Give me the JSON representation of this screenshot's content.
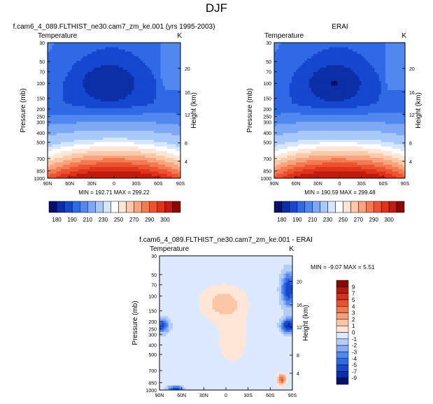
{
  "page": {
    "title": "DJF"
  },
  "colors": {
    "palette_abs": [
      "#08106b",
      "#0a2fa6",
      "#1547cf",
      "#2f69e6",
      "#5088f0",
      "#7ca8f5",
      "#a9c9fb",
      "#d6e7fd",
      "#ffffff",
      "#fde6d6",
      "#fcc9a8",
      "#f9a47c",
      "#f47a52",
      "#ec5330",
      "#e0331a",
      "#c01b0f",
      "#8a0a05"
    ],
    "palette_diff": [
      "#08106b",
      "#0a2fa6",
      "#1547cf",
      "#2f69e6",
      "#5088f0",
      "#86adf4",
      "#b2cdfb",
      "#dbe8fd",
      "#fde6d6",
      "#fbc6a6",
      "#f7a07a",
      "#f27a52",
      "#e9502f",
      "#d7301b",
      "#b21a0e",
      "#860906"
    ]
  },
  "chart_data": [
    {
      "type": "heatmap",
      "title": "f.cam6_4_089.FLTHIST_ne30.cam7_zm_ke.001 (yrs 1995-2003)",
      "left_label": "Temperature",
      "units": "K",
      "ylabel": "Pressure (mb)",
      "ylabel_right": "Height (km)",
      "x_ticks": [
        "90N",
        "60N",
        "30N",
        "0",
        "30S",
        "60S",
        "90S"
      ],
      "y_ticks": [
        "30",
        "50",
        "70",
        "100",
        "150",
        "200",
        "250",
        "300",
        "400",
        "500",
        "700",
        "850",
        "1000"
      ],
      "y_ticks_right": [
        "4",
        "8",
        "12",
        "16",
        "20"
      ],
      "stats": "MIN = 192.71  MAX = 299.22",
      "min": 192.71,
      "max": 299.22
    },
    {
      "type": "heatmap",
      "title": "ERAI",
      "left_label": "Temperature",
      "units": "K",
      "ylabel": "Pressure (mb)",
      "ylabel_right": "Height (km)",
      "x_ticks": [
        "90N",
        "60N",
        "30N",
        "0",
        "30S",
        "60S",
        "90S"
      ],
      "y_ticks": [
        "30",
        "50",
        "70",
        "100",
        "150",
        "200",
        "250",
        "300",
        "400",
        "500",
        "700",
        "850",
        "1000"
      ],
      "y_ticks_right": [
        "4",
        "8",
        "12",
        "16",
        "20"
      ],
      "stats": "MIN = 190.59  MAX = 299.48",
      "min": 190.59,
      "max": 299.48
    },
    {
      "type": "heatmap",
      "title": "f.cam6_4_089.FLTHIST_ne30.cam7_zm_ke.001 - ERAI",
      "left_label": "Temperature",
      "units": "K",
      "ylabel": "Pressure (mb)",
      "ylabel_right": "Height (km)",
      "x_ticks": [
        "90N",
        "60N",
        "30N",
        "0",
        "30S",
        "60S",
        "90S"
      ],
      "y_ticks": [
        "30",
        "50",
        "70",
        "100",
        "150",
        "200",
        "250",
        "300",
        "400",
        "500",
        "700",
        "850",
        "1000"
      ],
      "y_ticks_right": [
        "4",
        "8",
        "12",
        "16",
        "20"
      ],
      "stats": "MIN =  -9.07  MAX =   5.51",
      "min": -9.07,
      "max": 5.51
    }
  ],
  "colorbar_abs": {
    "labels": [
      "180",
      "190",
      "210",
      "230",
      "250",
      "270",
      "290",
      "300"
    ]
  },
  "colorbar_diff": {
    "labels": [
      "9",
      "7",
      "5",
      "4",
      "3",
      "2",
      "1",
      "0",
      "-1",
      "-2",
      "-3",
      "-4",
      "-5",
      "-7",
      "-9"
    ]
  }
}
